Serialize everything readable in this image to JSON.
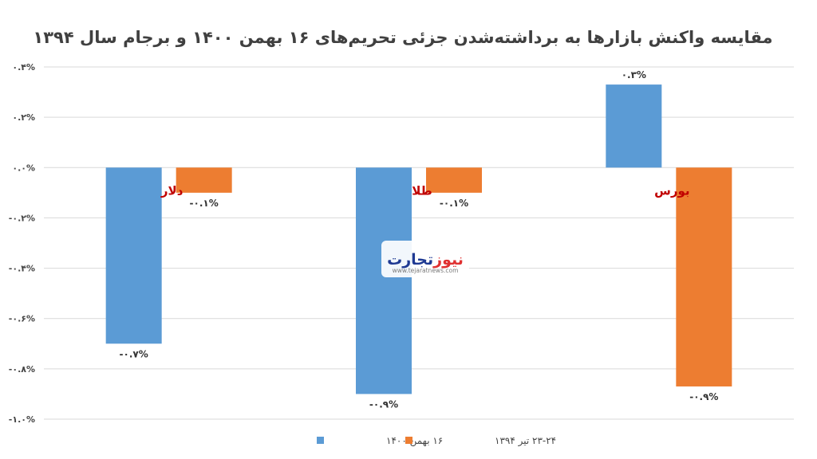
{
  "chart_data": {
    "type": "bar",
    "title": "مقایسه واکنش بازارها به برداشته‌شدن جزئی تحریم‌های ۱۶ بهمن ۱۴۰۰ و برجام سال ۱۳۹۴",
    "categories": [
      "دلار",
      "طلا",
      "بورس"
    ],
    "series": [
      {
        "name": "۱۶ بهمن ۱۴۰۰",
        "color": "#5b9bd5",
        "values": [
          -0.7,
          -0.9,
          0.33
        ],
        "labels": [
          "-۰.۷%",
          "-۰.۹%",
          "۰.۳%"
        ]
      },
      {
        "name": "۲۳-۲۴ تیر ۱۳۹۴",
        "color": "#ed7d31",
        "values": [
          -0.1,
          -0.1,
          -0.87
        ],
        "labels": [
          "-۰.۱%",
          "-۰.۱%",
          "-۰.۹%"
        ]
      }
    ],
    "ylim": [
      -1.0,
      0.4
    ],
    "yticks": [
      0.4,
      0.2,
      0.0,
      -0.2,
      -0.4,
      -0.6,
      -0.8,
      -1.0
    ],
    "ytick_labels": [
      "۰.۴%",
      "۰.۲%",
      "۰.۰%",
      "-۰.۲%",
      "-۰.۴%",
      "-۰.۶%",
      "-۰.۸%",
      "-۱.۰%"
    ],
    "grid": true,
    "legend_position": "bottom",
    "category_label_color": "#c00000"
  },
  "watermark": {
    "name_part1": "تجارت",
    "name_part2": "نیوز",
    "url": "www.tejaratnews.com",
    "color1": "#1f3a93",
    "color2": "#e03131"
  }
}
